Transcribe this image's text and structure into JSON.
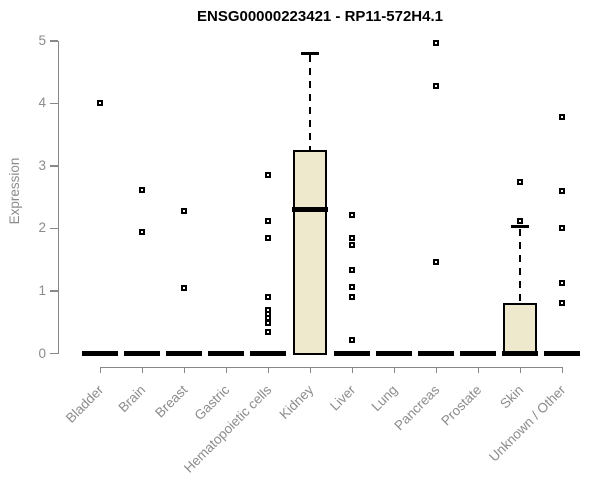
{
  "chart_data": {
    "type": "boxplot",
    "title": "ENSG00000223421 - RP11-572H4.1",
    "ylabel": "Expression",
    "xlabel": "",
    "ylim": [
      0,
      5
    ],
    "y_ticks": [
      "0",
      "1",
      "2",
      "3",
      "4",
      "5"
    ],
    "grid": false,
    "legend": null,
    "colors": {
      "box_fill": "#EEE8CD",
      "box_stroke": "#000000",
      "median": "#000000",
      "outlier_stroke": "#000000",
      "axis": "#888888",
      "tick_label": "#8c8c8c",
      "title": "#000000",
      "background": "#ffffff"
    },
    "categories": [
      "Bladder",
      "Brain",
      "Breast",
      "Gastric",
      "Hematopoietic cells",
      "Kidney",
      "Liver",
      "Lung",
      "Pancreas",
      "Prostate",
      "Skin",
      "Unknown / Other"
    ],
    "series": [
      {
        "category": "Bladder",
        "median": 0,
        "q1": 0,
        "q3": 0,
        "whisker_low": 0,
        "whisker_high": 0,
        "outliers": [
          4.0
        ]
      },
      {
        "category": "Brain",
        "median": 0,
        "q1": 0,
        "q3": 0,
        "whisker_low": 0,
        "whisker_high": 0,
        "outliers": [
          2.62,
          1.95
        ]
      },
      {
        "category": "Breast",
        "median": 0,
        "q1": 0,
        "q3": 0,
        "whisker_low": 0,
        "whisker_high": 0,
        "outliers": [
          2.28,
          1.04
        ]
      },
      {
        "category": "Gastric",
        "median": 0,
        "q1": 0,
        "q3": 0,
        "whisker_low": 0,
        "whisker_high": 0,
        "outliers": []
      },
      {
        "category": "Hematopoietic cells",
        "median": 0,
        "q1": 0,
        "q3": 0,
        "whisker_low": 0,
        "whisker_high": 0,
        "outliers": [
          2.85,
          2.12,
          1.85,
          0.9,
          0.7,
          0.63,
          0.56,
          0.49,
          0.34
        ]
      },
      {
        "category": "Kidney",
        "median": 2.3,
        "q1": 0,
        "q3": 3.25,
        "whisker_low": 0,
        "whisker_high": 4.8,
        "outliers": []
      },
      {
        "category": "Liver",
        "median": 0,
        "q1": 0,
        "q3": 0,
        "whisker_low": 0,
        "whisker_high": 0,
        "outliers": [
          2.22,
          1.85,
          1.74,
          1.34,
          1.07,
          0.91,
          0.21
        ]
      },
      {
        "category": "Lung",
        "median": 0,
        "q1": 0,
        "q3": 0,
        "whisker_low": 0,
        "whisker_high": 0,
        "outliers": []
      },
      {
        "category": "Pancreas",
        "median": 0,
        "q1": 0,
        "q3": 0,
        "whisker_low": 0,
        "whisker_high": 0,
        "outliers": [
          4.97,
          4.28,
          1.47
        ]
      },
      {
        "category": "Prostate",
        "median": 0,
        "q1": 0,
        "q3": 0,
        "whisker_low": 0,
        "whisker_high": 0,
        "outliers": []
      },
      {
        "category": "Skin",
        "median": 0,
        "q1": 0,
        "q3": 0.8,
        "whisker_low": 0,
        "whisker_high": 2.03,
        "outliers": [
          2.74,
          2.12
        ]
      },
      {
        "category": "Unknown / Other",
        "median": 0,
        "q1": 0,
        "q3": 0,
        "whisker_low": 0,
        "whisker_high": 0,
        "outliers": [
          3.78,
          2.6,
          2.0,
          1.13,
          0.8
        ]
      }
    ]
  }
}
